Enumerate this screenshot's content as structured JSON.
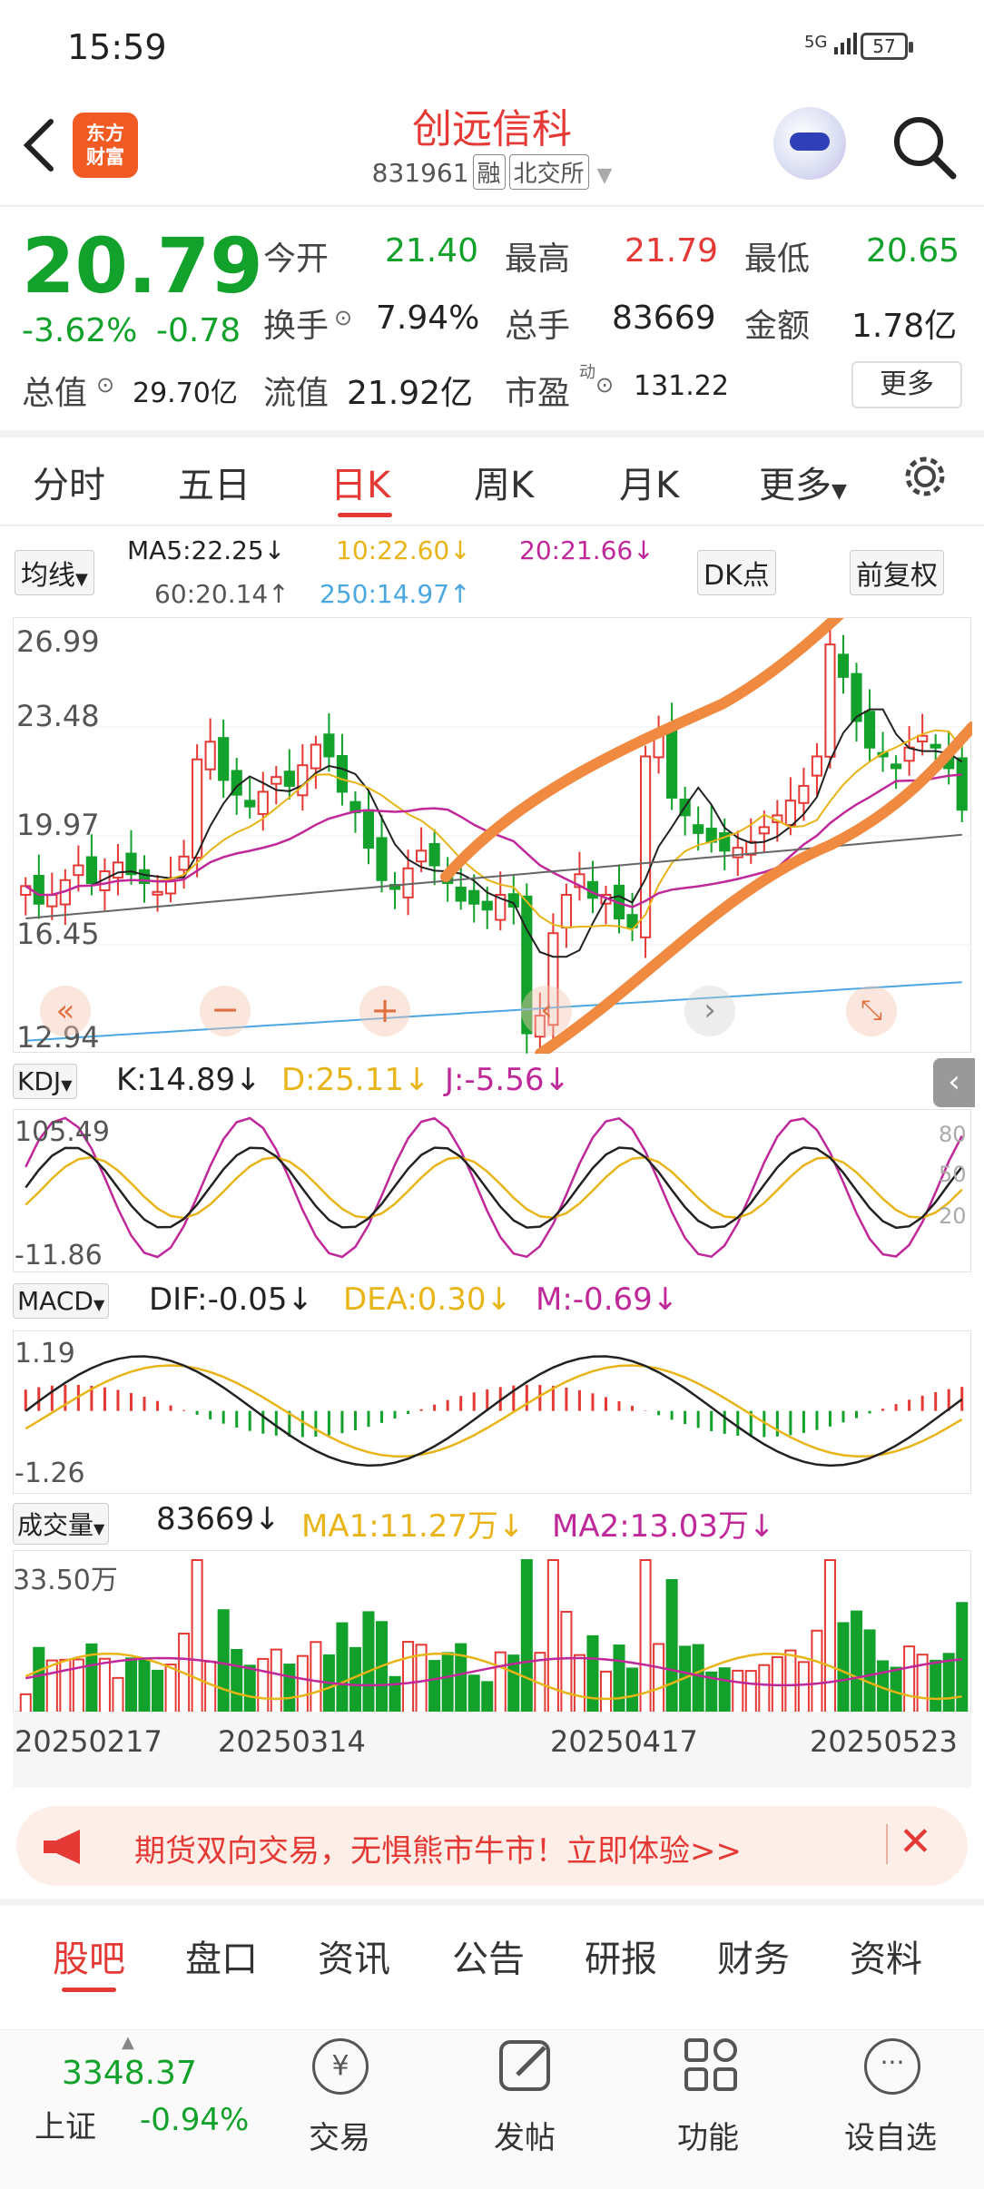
{
  "status": {
    "time": "15:59",
    "network": "5G",
    "battery": "57"
  },
  "header": {
    "title": "创远信科",
    "code": "831961",
    "tag1": "融",
    "tag2": "北交所",
    "logo_line1": "东方",
    "logo_line2": "财富"
  },
  "quote": {
    "price": "20.79",
    "change_pct": "-3.62%",
    "change": "-0.78",
    "open_label": "今开",
    "open": "21.40",
    "high_label": "最高",
    "high": "21.79",
    "low_label": "最低",
    "low": "20.65",
    "turnover_label": "换手",
    "turnover": "7.94%",
    "volume_label": "总手",
    "volume": "83669",
    "amount_label": "金额",
    "amount": "1.78亿",
    "mcap_label": "总值",
    "mcap": "29.70亿",
    "float_label": "流值",
    "float": "21.92亿",
    "pe_label": "市盈",
    "pe_sup": "动",
    "pe": "131.22",
    "more_label": "更多"
  },
  "tabs": [
    "分时",
    "五日",
    "日K",
    "周K",
    "月K",
    "更多"
  ],
  "ma": {
    "selector": "均线",
    "ma5": "MA5:22.25↓",
    "ma10": "10:22.60↓",
    "ma20": "20:21.66↓",
    "ma60": "60:20.14↑",
    "ma250": "250:14.97↑",
    "dk": "DK点",
    "fq": "前复权",
    "colors": {
      "ma5": "#222222",
      "ma10": "#e8b418",
      "ma20": "#c0289a",
      "ma60": "#666666",
      "ma250": "#4aa7e0"
    }
  },
  "kline_axis": [
    "26.99",
    "23.48",
    "19.97",
    "16.45",
    "12.94"
  ],
  "kdj": {
    "selector": "KDJ",
    "k": "K:14.89↓",
    "d": "D:25.11↓",
    "j": "J:-5.56↓",
    "y_top": "105.49",
    "y_bottom": "-11.86",
    "levels": [
      "80",
      "50",
      "20"
    ]
  },
  "macd": {
    "selector": "MACD",
    "dif": "DIF:-0.05↓",
    "dea": "DEA:0.30↓",
    "m": "M:-0.69↓",
    "y_top": "1.19",
    "y_bottom": "-1.26"
  },
  "vol": {
    "selector": "成交量",
    "value": "83669↓",
    "ma1": "MA1:11.27万↓",
    "ma2": "MA2:13.03万↓",
    "y_top": "33.50万"
  },
  "dates": [
    "20250217",
    "20250314",
    "20250417",
    "20250523"
  ],
  "chart_data": {
    "type": "candlestick",
    "closes": [
      18.2,
      17.6,
      17.9,
      18.4,
      18.9,
      18.3,
      18.7,
      19.0,
      18.6,
      18.3,
      18.0,
      18.4,
      19.2,
      22.5,
      23.1,
      21.8,
      21.3,
      20.9,
      21.4,
      21.9,
      21.6,
      22.3,
      23.0,
      22.6,
      21.4,
      20.7,
      19.5,
      18.4,
      18.1,
      18.8,
      19.4,
      18.9,
      18.3,
      17.7,
      17.6,
      17.4,
      17.9,
      17.5,
      13.2,
      13.8,
      16.6,
      17.9,
      18.6,
      17.8,
      17.9,
      17.1,
      16.8,
      22.6,
      23.3,
      21.2,
      20.6,
      20.0,
      19.7,
      19.4,
      19.5,
      19.7,
      20.2,
      20.6,
      21.1,
      21.6,
      22.6,
      26.4,
      25.3,
      23.8,
      22.9,
      22.6,
      22.2,
      22.9,
      23.3,
      22.9,
      22.2,
      20.79
    ],
    "kdj_y_range": [
      -11.86,
      105.49
    ],
    "macd_y_range": [
      -1.26,
      1.19
    ],
    "vol_max": "33.50万"
  },
  "ad": {
    "text": "期货双向交易，无惧熊市牛市！立即体验>>"
  },
  "bottom_tabs": [
    "股吧",
    "盘口",
    "资讯",
    "公告",
    "研报",
    "财务",
    "资料"
  ],
  "footer": {
    "index_value": "3348.37",
    "index_name": "上证",
    "index_chg": "-0.94%",
    "trade": "交易",
    "post": "发帖",
    "func": "功能",
    "watch": "设自选"
  }
}
